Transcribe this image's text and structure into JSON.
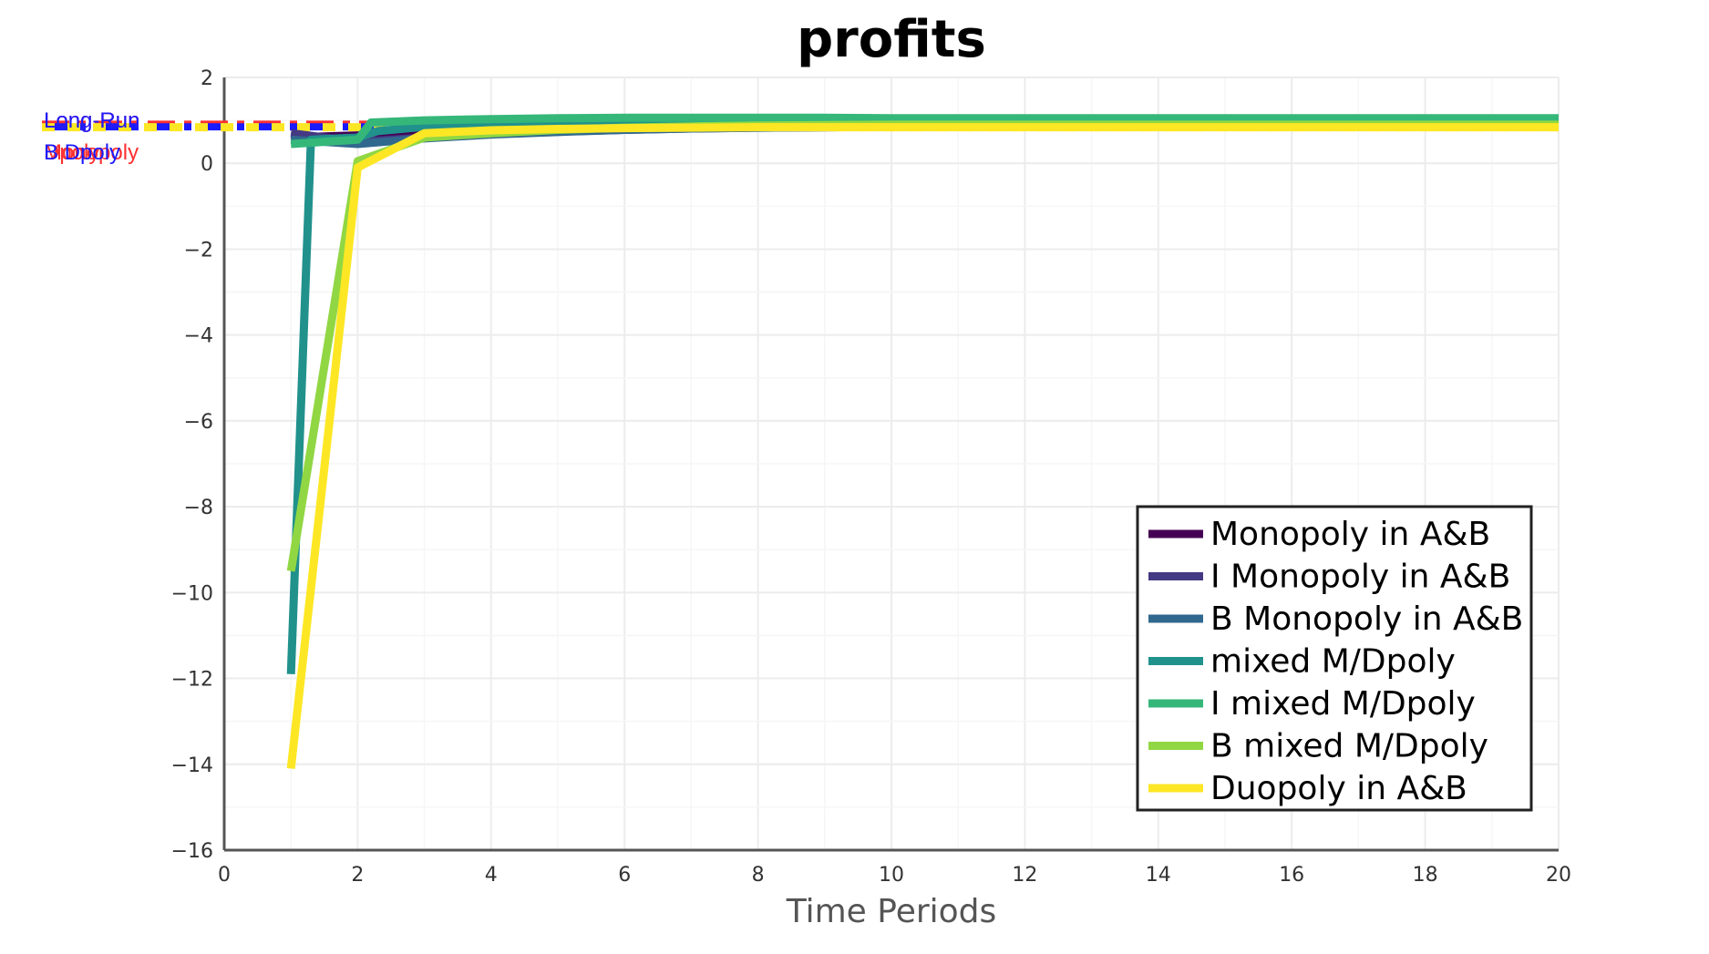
{
  "chart_data": {
    "type": "line",
    "title": "profits",
    "xlabel": "Time Periods",
    "ylabel": "",
    "xlim": [
      0,
      20
    ],
    "ylim": [
      -16,
      2
    ],
    "xticks": [
      0,
      2,
      4,
      6,
      8,
      10,
      12,
      14,
      16,
      18,
      20
    ],
    "yticks": [
      2,
      0,
      -2,
      -4,
      -6,
      -8,
      -10,
      -12,
      -14,
      -16
    ],
    "ytick_labels": [
      "2",
      "0",
      "−2",
      "−4",
      "−6",
      "−8",
      "−10",
      "−12",
      "−14",
      "−16"
    ],
    "grid": true,
    "legend_position": "bottom-right",
    "series": [
      {
        "name": "Monopoly in A&B",
        "color": "#440154",
        "x": [
          1,
          2,
          3,
          4,
          5,
          6,
          7,
          8,
          9,
          10,
          11,
          12,
          13,
          14,
          15,
          16,
          17,
          18,
          19,
          20
        ],
        "y": [
          0.6,
          0.65,
          0.72,
          0.77,
          0.8,
          0.83,
          0.85,
          0.86,
          0.87,
          0.87,
          0.87,
          0.87,
          0.87,
          0.87,
          0.87,
          0.87,
          0.87,
          0.87,
          0.87,
          0.87
        ]
      },
      {
        "name": "I Monopoly in A&B",
        "color": "#443983",
        "x": [
          1,
          2,
          3,
          4,
          5,
          6,
          7,
          8,
          9,
          10,
          11,
          12,
          13,
          14,
          15,
          16,
          17,
          18,
          19,
          20
        ],
        "y": [
          0.7,
          0.5,
          0.6,
          0.68,
          0.74,
          0.78,
          0.81,
          0.83,
          0.84,
          0.85,
          0.85,
          0.85,
          0.85,
          0.85,
          0.85,
          0.85,
          0.85,
          0.85,
          0.85,
          0.85
        ]
      },
      {
        "name": "B Monopoly in A&B",
        "color": "#31688e",
        "x": [
          1,
          2,
          3,
          4,
          5,
          6,
          7,
          8,
          9,
          10,
          11,
          12,
          13,
          14,
          15,
          16,
          17,
          18,
          19,
          20
        ],
        "y": [
          0.55,
          0.45,
          0.58,
          0.67,
          0.73,
          0.78,
          0.81,
          0.83,
          0.84,
          0.85,
          0.85,
          0.85,
          0.85,
          0.85,
          0.85,
          0.85,
          0.85,
          0.85,
          0.85,
          0.85
        ]
      },
      {
        "name": "mixed M/Dpoly",
        "color": "#21918c",
        "x": [
          1,
          1.3,
          2,
          2.3,
          3,
          4,
          5,
          6,
          7,
          8,
          9,
          10,
          11,
          12,
          13,
          14,
          15,
          16,
          17,
          18,
          19,
          20
        ],
        "y": [
          -11.9,
          0.55,
          0.6,
          0.75,
          0.85,
          0.92,
          0.96,
          0.98,
          0.99,
          1.0,
          1.0,
          1.0,
          1.0,
          1.0,
          1.0,
          1.0,
          1.0,
          1.0,
          1.0,
          1.0,
          1.0,
          1.0
        ]
      },
      {
        "name": "I mixed M/Dpoly",
        "color": "#35b779",
        "x": [
          1,
          2,
          2.2,
          3,
          4,
          5,
          6,
          7,
          8,
          9,
          10,
          11,
          12,
          13,
          14,
          15,
          16,
          17,
          18,
          19,
          20
        ],
        "y": [
          0.45,
          0.55,
          0.95,
          1.0,
          1.03,
          1.05,
          1.06,
          1.06,
          1.06,
          1.06,
          1.05,
          1.05,
          1.05,
          1.05,
          1.05,
          1.05,
          1.05,
          1.05,
          1.05,
          1.05,
          1.05
        ]
      },
      {
        "name": "B mixed M/Dpoly",
        "color": "#90d743",
        "x": [
          1,
          2,
          3,
          4,
          5,
          6,
          7,
          8,
          9,
          10,
          11,
          12,
          13,
          14,
          15,
          16,
          17,
          18,
          19,
          20
        ],
        "y": [
          -9.5,
          0.05,
          0.6,
          0.7,
          0.78,
          0.83,
          0.86,
          0.88,
          0.89,
          0.9,
          0.9,
          0.9,
          0.9,
          0.9,
          0.9,
          0.9,
          0.9,
          0.9,
          0.9,
          0.9
        ]
      },
      {
        "name": "Duopoly in A&B",
        "color": "#fde725",
        "x": [
          1,
          2,
          3,
          4,
          5,
          6,
          7,
          8,
          9,
          10,
          11,
          12,
          13,
          14,
          15,
          16,
          17,
          18,
          19,
          20
        ],
        "y": [
          -14.1,
          -0.1,
          0.7,
          0.77,
          0.8,
          0.82,
          0.83,
          0.84,
          0.84,
          0.84,
          0.84,
          0.84,
          0.84,
          0.84,
          0.84,
          0.84,
          0.84,
          0.84,
          0.84,
          0.84
        ]
      }
    ],
    "reference_lines": [
      {
        "label": "Long-Run",
        "y": 0.92,
        "color": "#ff3030",
        "style": "dashdot"
      },
      {
        "label": "Monopoly",
        "y": 0.9,
        "color": "#ff3030",
        "style": "dashdot"
      },
      {
        "label": "Dpoly",
        "y": 0.88,
        "color": "#ff3030",
        "style": "dashdot"
      },
      {
        "label": "Long-Run",
        "y": 0.86,
        "color": "#1a1aff",
        "style": "dashdot"
      },
      {
        "label": "B Dpoly",
        "y": 0.84,
        "color": "#1a1aff",
        "style": "dashdot"
      },
      {
        "label": "",
        "y": 0.84,
        "color": "#fde725",
        "style": "dotted"
      }
    ]
  }
}
